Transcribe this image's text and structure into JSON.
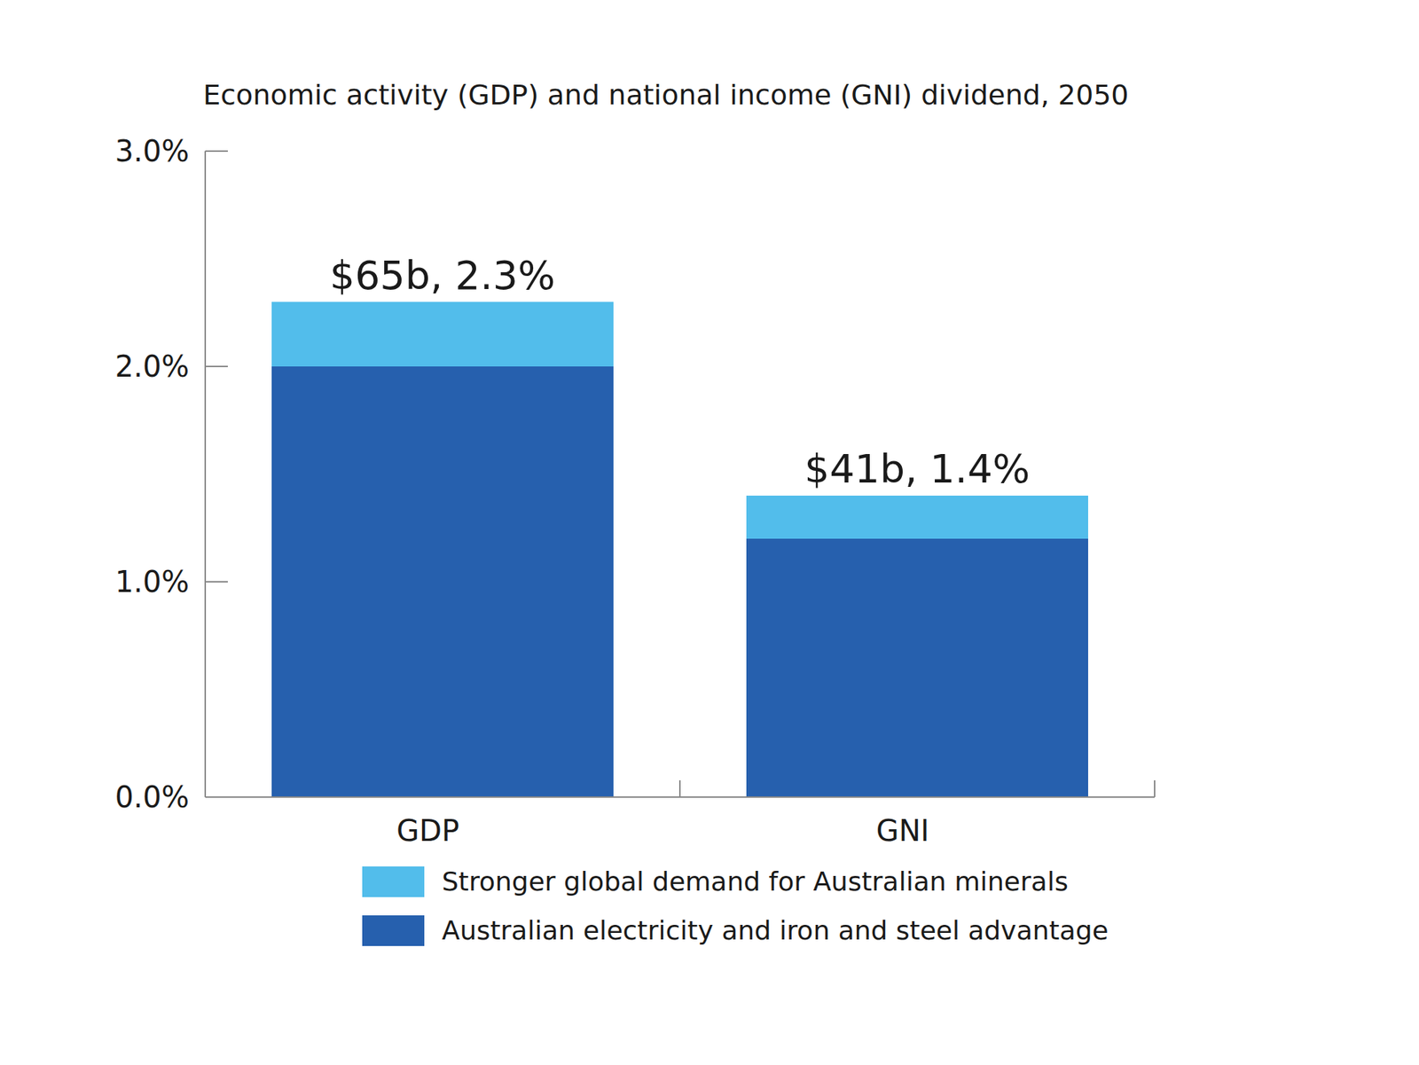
{
  "chart_data": {
    "type": "bar",
    "stacked": true,
    "title": "Economic activity (GDP) and national income (GNI) dividend, 2050",
    "categories": [
      "GDP",
      "GNI"
    ],
    "series": [
      {
        "name": "Australian electricity and iron and steel advantage",
        "color": "#2660ae",
        "values": [
          2.0,
          1.2
        ]
      },
      {
        "name": "Stronger global demand for Australian minerals",
        "color": "#52bdeb",
        "values": [
          0.3,
          0.2
        ]
      }
    ],
    "total_labels": [
      "$65b, 2.3%",
      "$41b, 1.4%"
    ],
    "ylim": [
      0,
      3
    ],
    "yticks": [
      {
        "value": 0,
        "label": "0.0%"
      },
      {
        "value": 1,
        "label": "1.0%"
      },
      {
        "value": 2,
        "label": "2.0%"
      },
      {
        "value": 3,
        "label": "3.0%"
      }
    ],
    "legend": "bottom"
  }
}
